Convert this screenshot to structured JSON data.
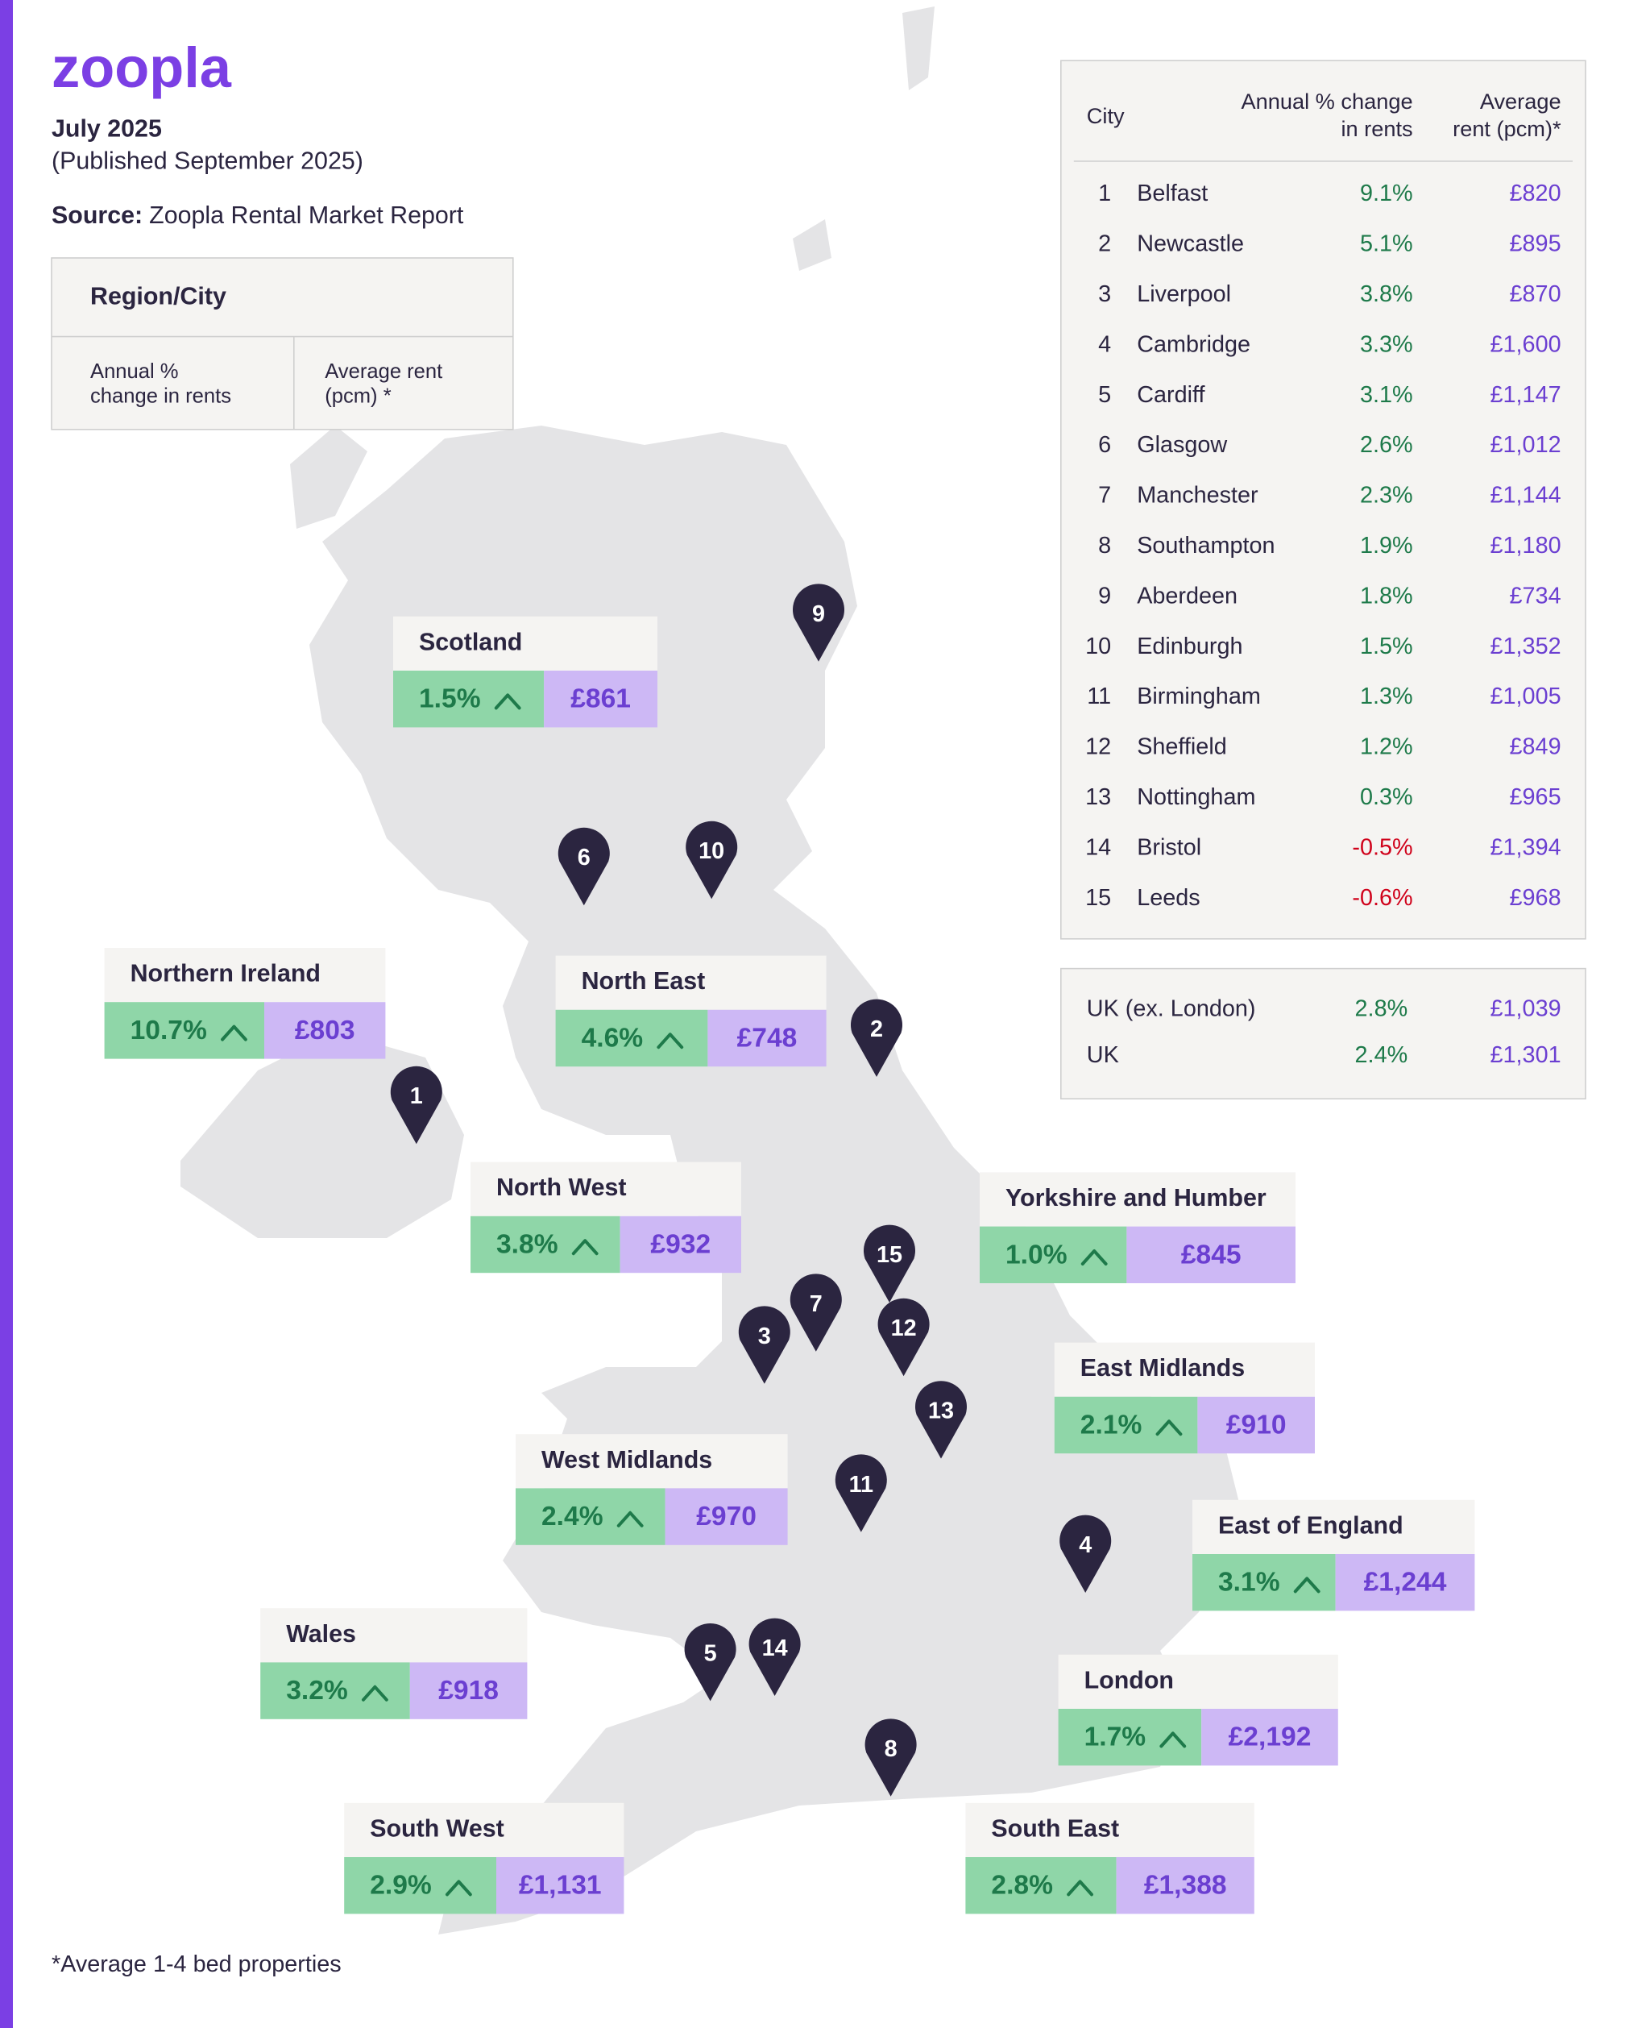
{
  "header": {
    "logo": "zoopla",
    "period": "July 2025",
    "published": "(Published September 2025)",
    "source_label": "Source:",
    "source": "Zoopla Rental Market Report"
  },
  "legend": {
    "title": "Region/City",
    "change": [
      "Annual %",
      "change in rents"
    ],
    "rent": [
      "Average rent",
      "(pcm) *"
    ]
  },
  "regions": [
    {
      "name": "Scotland",
      "change": "1.5%",
      "rent": "£861"
    },
    {
      "name": "Northern Ireland",
      "change": "10.7%",
      "rent": "£803"
    },
    {
      "name": "North East",
      "change": "4.6%",
      "rent": "£748"
    },
    {
      "name": "North West",
      "change": "3.8%",
      "rent": "£932"
    },
    {
      "name": "Yorkshire and Humber",
      "change": "1.0%",
      "rent": "£845"
    },
    {
      "name": "East Midlands",
      "change": "2.1%",
      "rent": "£910"
    },
    {
      "name": "West Midlands",
      "change": "2.4%",
      "rent": "£970"
    },
    {
      "name": "East of England",
      "change": "3.1%",
      "rent": "£1,244"
    },
    {
      "name": "Wales",
      "change": "3.2%",
      "rent": "£918"
    },
    {
      "name": "London",
      "change": "1.7%",
      "rent": "£2,192"
    },
    {
      "name": "South West",
      "change": "2.9%",
      "rent": "£1,131"
    },
    {
      "name": "South East",
      "change": "2.8%",
      "rent": "£1,388"
    }
  ],
  "pins": [
    "1",
    "2",
    "3",
    "4",
    "5",
    "6",
    "7",
    "8",
    "9",
    "10",
    "11",
    "12",
    "13",
    "14",
    "15"
  ],
  "table": {
    "headers": [
      [
        "City"
      ],
      [
        "Annual % change",
        "in rents"
      ],
      [
        "Average",
        "rent (pcm)*"
      ]
    ],
    "rows": [
      [
        "1",
        "Belfast",
        "9.1%",
        "£820"
      ],
      [
        "2",
        "Newcastle",
        "5.1%",
        "£895"
      ],
      [
        "3",
        "Liverpool",
        "3.8%",
        "£870"
      ],
      [
        "4",
        "Cambridge",
        "3.3%",
        "£1,600"
      ],
      [
        "5",
        "Cardiff",
        "3.1%",
        "£1,147"
      ],
      [
        "6",
        "Glasgow",
        "2.6%",
        "£1,012"
      ],
      [
        "7",
        "Manchester",
        "2.3%",
        "£1,144"
      ],
      [
        "8",
        "Southampton",
        "1.9%",
        "£1,180"
      ],
      [
        "9",
        "Aberdeen",
        "1.8%",
        "£734"
      ],
      [
        "10",
        "Edinburgh",
        "1.5%",
        "£1,352"
      ],
      [
        "11",
        "Birmingham",
        "1.3%",
        "£1,005"
      ],
      [
        "12",
        "Sheffield",
        "1.2%",
        "£849"
      ],
      [
        "13",
        "Nottingham",
        "0.3%",
        "£965"
      ],
      [
        "14",
        "Bristol",
        "-0.5%",
        "£1,394"
      ],
      [
        "15",
        "Leeds",
        "-0.6%",
        "£968"
      ]
    ]
  },
  "summary": [
    [
      "UK (ex. London)",
      "2.8%",
      "£1,039"
    ],
    [
      "UK",
      "2.4%",
      "£1,301"
    ]
  ],
  "footnote": "*Average 1-4 bed properties"
}
